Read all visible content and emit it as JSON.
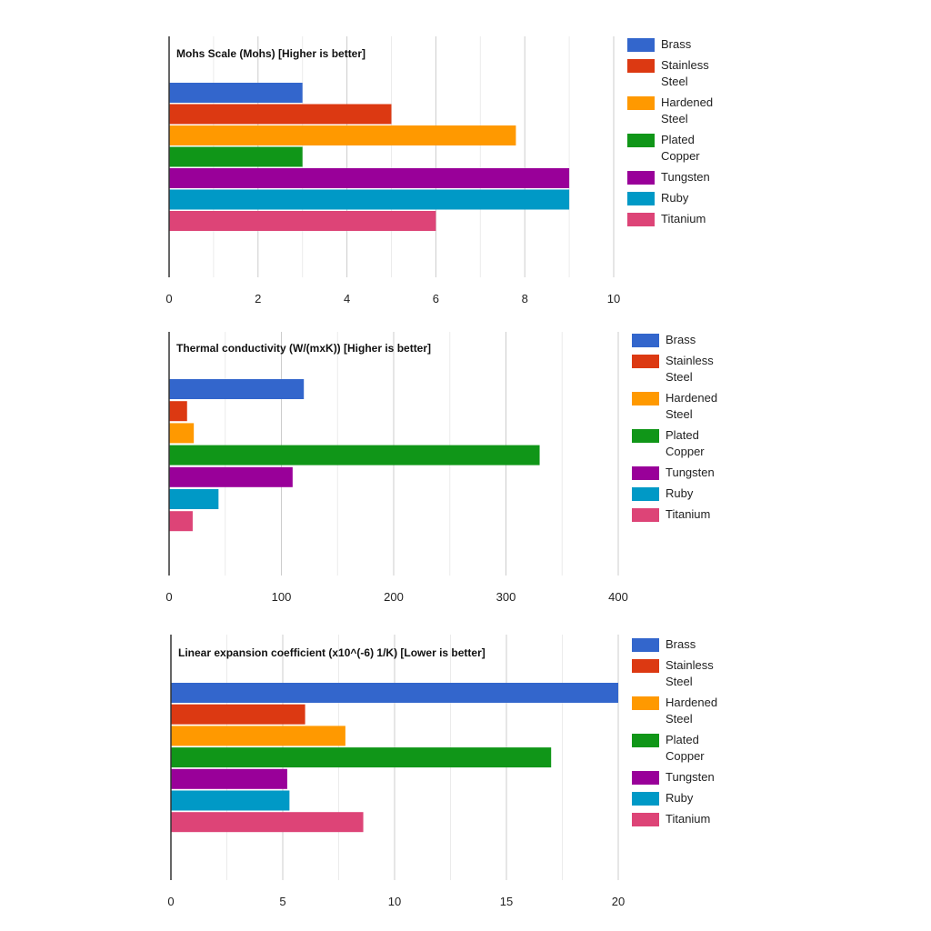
{
  "chart_data": [
    {
      "type": "bar",
      "orientation": "horizontal",
      "title": "Mohs Scale (Mohs) [Higher is better]",
      "categories": [
        "Brass",
        "Stainless Steel",
        "Hardened Steel",
        "Plated Copper",
        "Tungsten",
        "Ruby",
        "Titanium"
      ],
      "values": [
        3,
        5,
        7.8,
        3,
        9,
        9,
        6
      ],
      "xlim": [
        0,
        10
      ],
      "xticks": [
        "0",
        "2",
        "4",
        "6",
        "8",
        "10"
      ],
      "grid": true,
      "legend_position": "right"
    },
    {
      "type": "bar",
      "orientation": "horizontal",
      "title": "Thermal conductivity (W/(mxK)) [Higher is better]",
      "categories": [
        "Brass",
        "Stainless Steel",
        "Hardened Steel",
        "Plated Copper",
        "Tungsten",
        "Ruby",
        "Titanium"
      ],
      "values": [
        120,
        16,
        22,
        330,
        110,
        44,
        21
      ],
      "xlim": [
        0,
        400
      ],
      "xticks": [
        "0",
        "100",
        "200",
        "300",
        "400"
      ],
      "grid": true,
      "legend_position": "right"
    },
    {
      "type": "bar",
      "orientation": "horizontal",
      "title": "Linear expansion coefficient (x10^(-6) 1/K) [Lower is better]",
      "categories": [
        "Brass",
        "Stainless Steel",
        "Hardened Steel",
        "Plated Copper",
        "Tungsten",
        "Ruby",
        "Titanium"
      ],
      "values": [
        20,
        6,
        7.8,
        17,
        5.2,
        5.3,
        8.6
      ],
      "xlim": [
        0,
        20
      ],
      "xticks": [
        "0",
        "5",
        "10",
        "15",
        "20"
      ],
      "grid": true,
      "legend_position": "right"
    }
  ],
  "colors": [
    "#3366cc",
    "#dc3912",
    "#ff9900",
    "#109618",
    "#990099",
    "#0099c6",
    "#dd4477"
  ],
  "legend": {
    "items": [
      {
        "label": "Brass",
        "icon": "legend-swatch"
      },
      {
        "label": "Stainless Steel",
        "icon": "legend-swatch"
      },
      {
        "label": "Hardened Steel",
        "icon": "legend-swatch"
      },
      {
        "label": "Plated Copper",
        "icon": "legend-swatch"
      },
      {
        "label": "Tungsten",
        "icon": "legend-swatch"
      },
      {
        "label": "Ruby",
        "icon": "legend-swatch"
      },
      {
        "label": "Titanium",
        "icon": "legend-swatch"
      }
    ]
  }
}
